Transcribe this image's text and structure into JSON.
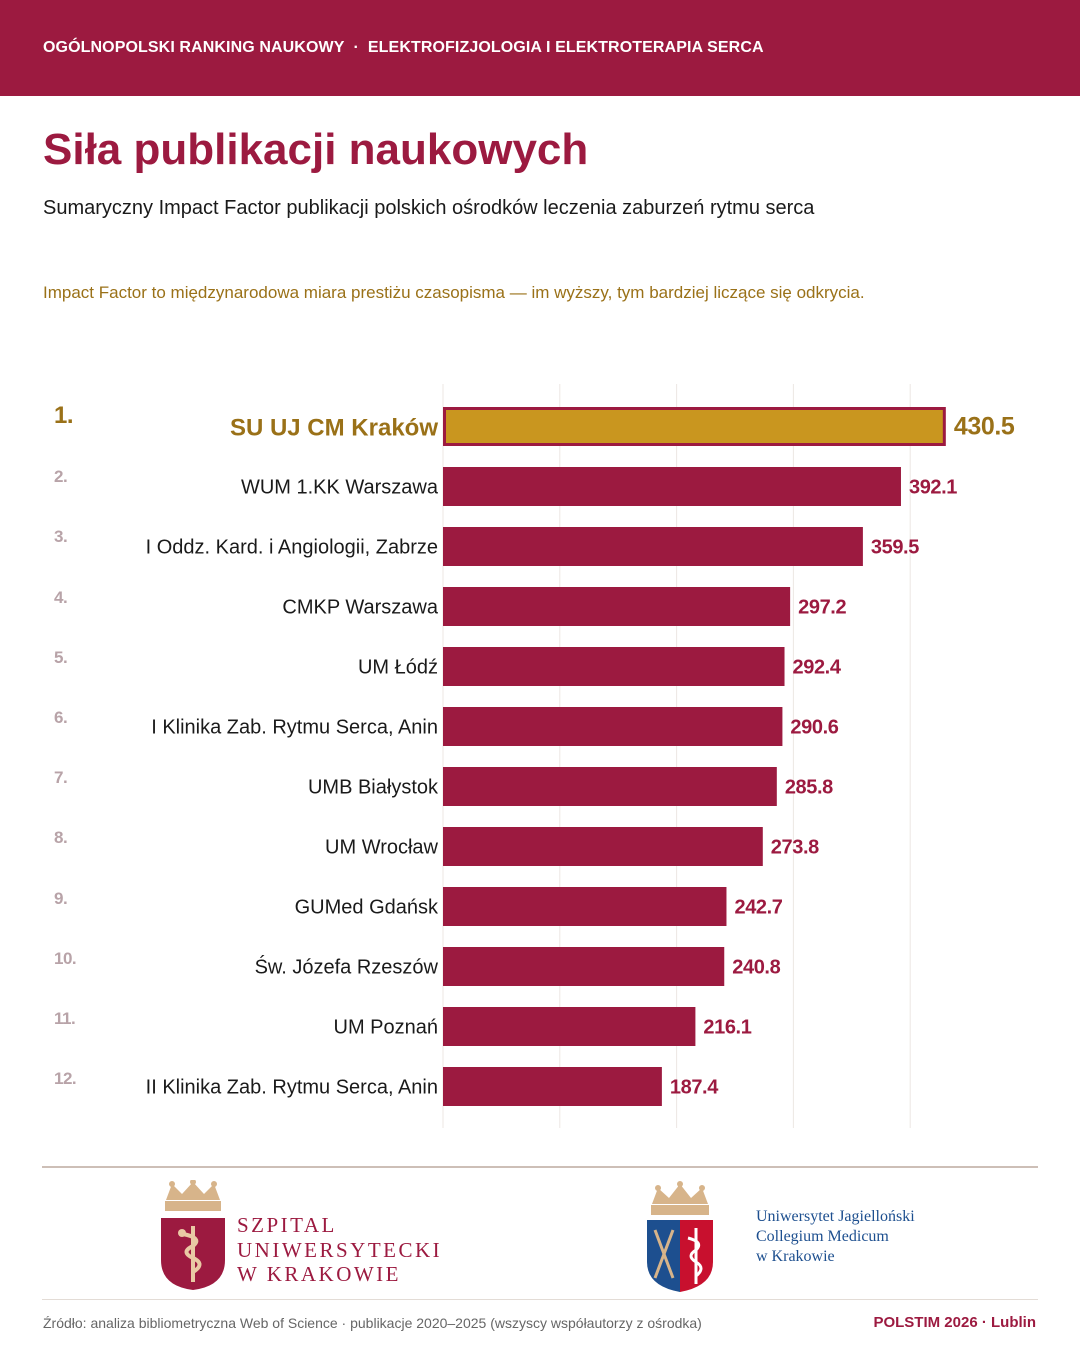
{
  "header": {
    "left": "OGÓLNOPOLSKI RANKING NAUKOWY",
    "separator": "·",
    "right": "ELEKTROFIZJOLOGIA I ELEKTROTERAPIA SERCA"
  },
  "title": "Siła publikacji naukowych",
  "subtitle": "Sumaryczny Impact Factor publikacji polskich ośrodków leczenia zaburzeń rytmu serca",
  "note": "Impact Factor to międzynarodowa miara prestiżu czasopisma — im wyższy, tym bardziej liczące się odkrycia.",
  "colors": {
    "primary": "#9c1a40",
    "highlight": "#c9961f",
    "highlight_text": "#9a7118",
    "rank_muted": "#b8a3a8",
    "label": "#1a1a1a",
    "grid": "#ece7e3"
  },
  "chart_data": {
    "type": "bar",
    "orientation": "horizontal",
    "ranks": [
      "1.",
      "2.",
      "3.",
      "4.",
      "5.",
      "6.",
      "7.",
      "8.",
      "9.",
      "10.",
      "11.",
      "12."
    ],
    "categories": [
      "SU UJ CM Kraków",
      "WUM 1.KK Warszawa",
      "I Oddz. Kard. i Angiologii, Zabrze",
      "CMKP Warszawa",
      "UM Łódź",
      "I Klinika Zab. Rytmu Serca, Anin",
      "UMB Białystok",
      "UM Wrocław",
      "GUMed Gdańsk",
      "Św. Józefa Rzeszów",
      "UM Poznań",
      "II Klinika Zab. Rytmu Serca, Anin"
    ],
    "values": [
      430.5,
      392.1,
      359.5,
      297.2,
      292.4,
      290.6,
      285.8,
      273.8,
      242.7,
      240.8,
      216.1,
      187.4
    ],
    "value_labels": [
      "430.5",
      "392.1",
      "359.5",
      "297.2",
      "292.4",
      "290.6",
      "285.8",
      "273.8",
      "242.7",
      "240.8",
      "216.1",
      "187.4"
    ],
    "highlight_index": 0,
    "xlim": [
      0,
      500
    ],
    "grid": true,
    "legend": "none"
  },
  "logos": {
    "left_lines": [
      "SZPITAL",
      "UNIWERSYTECKI",
      "W KRAKOWIE"
    ],
    "left_icon": "crown-shield-caduceus-icon",
    "right_lines": [
      "Uniwersytet Jagielloński",
      "Collegium Medicum",
      "w Krakowie"
    ],
    "right_icon": "crown-shield-scepters-caduceus-icon"
  },
  "footer": {
    "source": "Źródło: analiza bibliometryczna Web of Science · publikacje 2020–2025 (wszyscy współautorzy z ośrodka)",
    "event": "POLSTIM 2026 · Lublin"
  }
}
